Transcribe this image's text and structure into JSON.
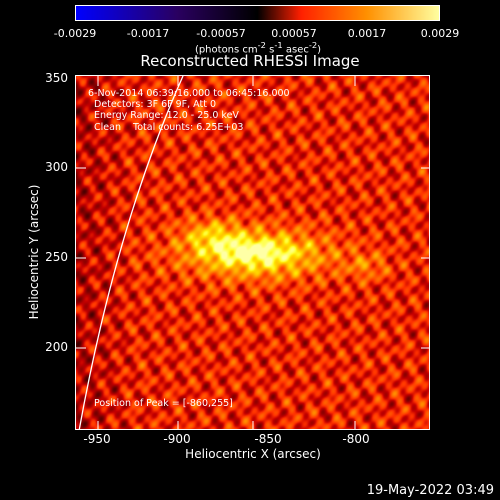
{
  "colorbar": {
    "labels": [
      "-0.0029",
      "-0.0017",
      "-0.00057",
      "0.00057",
      "0.0017",
      "0.0029"
    ],
    "units_prefix": "(photons cm",
    "units_exp1": "-2",
    "units_mid": " s",
    "units_exp2": "-1",
    "units_mid2": " asec",
    "units_exp3": "-2",
    "units_suffix": ")",
    "colors": [
      "#0000ff",
      "#2a0060",
      "#000000",
      "#ff2000",
      "#ff9000",
      "#ffffa0"
    ]
  },
  "title": "Reconstructed RHESSI Image",
  "info": {
    "line1": "6-Nov-2014 06:39:16.000 to 06:45:16.000",
    "line2": "Detectors: 3F 6F 9F, Att 0",
    "line3": "Energy Range: 12.0 - 25.0 keV",
    "line4": "Clean    Total counts: 6.25E+03",
    "peak": "Position of Peak = [-860,255]"
  },
  "axes": {
    "x_title": "Heliocentric X (arcsec)",
    "y_title": "Heliocentric Y (arcsec)",
    "x_ticks": [
      "-950",
      "-900",
      "-850",
      "-800"
    ],
    "y_ticks": [
      "350",
      "300",
      "250",
      "200"
    ],
    "xlim": [
      -958,
      -818
    ],
    "ylim": [
      160,
      350
    ]
  },
  "peak_position": [
    -860,
    255
  ],
  "timestamp": "19-May-2022 03:49"
}
